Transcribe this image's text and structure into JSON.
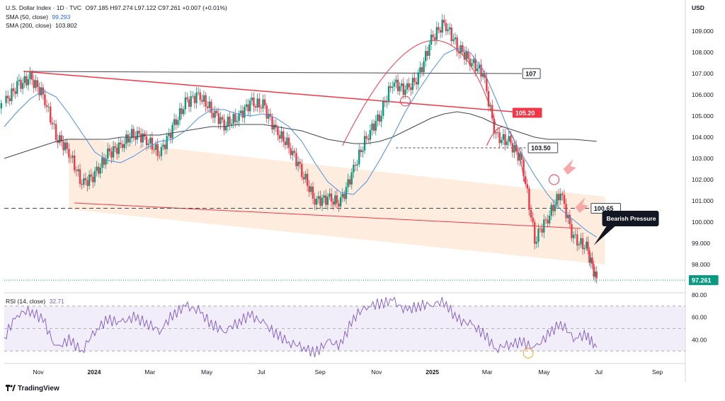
{
  "header": {
    "title": "U.S. Dollar Index · 1D · TVC",
    "ohlc": "O97.185  H97.274  L97.122  C97.261  +0.007 (+0.01%)",
    "sma50_label": "SMA (50, close)",
    "sma50_value": "99.293",
    "sma200_label": "SMA (200, close)",
    "sma200_value": "103.802",
    "rsi_label": "RSI (14, close)",
    "rsi_value": "32.71"
  },
  "colors": {
    "up": "#089981",
    "down": "#f23645",
    "sma50": "#4a8fe0",
    "sma200": "#434651",
    "rsi": "#7e57c2",
    "resistance": "#f23645",
    "channel_fill": "#fde7d3"
  },
  "annotations": {
    "level_107": "107",
    "level_105": "105.20",
    "level_103": "103.50",
    "level_100": "100.65",
    "price_tag": "97.261",
    "callout": "Bearish Pressure",
    "currency": "USD"
  },
  "brand": "TradingView",
  "chart_data": [
    {
      "type": "line",
      "series_kind": "candlestick",
      "x": [
        "2023-09-25",
        "2023-10-09",
        "2023-10-23",
        "2023-11-06",
        "2023-11-20",
        "2023-12-04",
        "2023-12-18",
        "2024-01-01",
        "2024-01-15",
        "2024-01-29",
        "2024-02-12",
        "2024-02-26",
        "2024-03-11",
        "2024-03-25",
        "2024-04-08",
        "2024-04-22",
        "2024-05-06",
        "2024-05-20",
        "2024-06-03",
        "2024-06-17",
        "2024-07-01",
        "2024-07-15",
        "2024-07-29",
        "2024-08-12",
        "2024-08-26",
        "2024-09-09",
        "2024-09-23",
        "2024-10-07",
        "2024-10-21",
        "2024-11-04",
        "2024-11-18",
        "2024-12-02",
        "2024-12-16",
        "2024-12-30",
        "2025-01-13",
        "2025-01-27",
        "2025-02-10",
        "2025-02-24",
        "2025-03-10",
        "2025-03-24",
        "2025-04-07",
        "2025-04-21",
        "2025-05-05",
        "2025-05-19",
        "2025-06-02",
        "2025-06-16",
        "2025-06-27"
      ],
      "close": [
        105.6,
        106.4,
        106.8,
        106.0,
        104.1,
        103.3,
        101.8,
        102.2,
        103.2,
        103.6,
        104.2,
        103.9,
        103.2,
        104.4,
        105.6,
        106.0,
        105.3,
        104.6,
        104.9,
        105.6,
        105.5,
        104.3,
        103.6,
        102.4,
        101.0,
        101.1,
        100.9,
        102.5,
        104.0,
        105.0,
        106.6,
        106.2,
        106.8,
        108.6,
        109.4,
        108.3,
        107.6,
        107.0,
        104.0,
        103.8,
        102.9,
        99.2,
        100.2,
        101.4,
        99.2,
        98.8,
        97.261
      ],
      "sma50": [
        104.5,
        105.2,
        105.8,
        106.2,
        105.9,
        105.1,
        104.2,
        103.3,
        102.9,
        102.8,
        103.1,
        103.5,
        103.8,
        103.9,
        104.3,
        104.9,
        105.3,
        105.3,
        105.1,
        105.0,
        105.1,
        104.9,
        104.5,
        103.8,
        102.8,
        101.9,
        101.4,
        101.3,
        101.9,
        102.9,
        104.0,
        105.2,
        106.2,
        107.1,
        107.9,
        108.2,
        108.0,
        107.2,
        105.8,
        104.3,
        103.2,
        102.2,
        101.3,
        100.6,
        100.1,
        99.6,
        99.293
      ],
      "sma200": [
        103.0,
        103.2,
        103.4,
        103.6,
        103.8,
        103.9,
        103.9,
        103.9,
        103.9,
        104.0,
        104.0,
        104.1,
        104.1,
        104.2,
        104.3,
        104.4,
        104.5,
        104.5,
        104.6,
        104.6,
        104.6,
        104.5,
        104.4,
        104.3,
        104.1,
        103.9,
        103.8,
        103.7,
        103.7,
        103.8,
        104.0,
        104.3,
        104.6,
        104.9,
        105.1,
        105.2,
        105.1,
        104.9,
        104.6,
        104.4,
        104.2,
        104.0,
        103.9,
        103.9,
        103.9,
        103.85,
        103.802
      ],
      "rsi": [
        42,
        63,
        66,
        58,
        32,
        40,
        30,
        48,
        58,
        55,
        60,
        55,
        48,
        62,
        70,
        66,
        54,
        48,
        55,
        62,
        55,
        45,
        38,
        34,
        28,
        38,
        35,
        60,
        70,
        72,
        75,
        66,
        70,
        72,
        74,
        58,
        54,
        46,
        32,
        36,
        38,
        32,
        44,
        55,
        42,
        44,
        32.71
      ],
      "y_ticks": [
        "98.000",
        "99.000",
        "100.000",
        "101.000",
        "102.000",
        "103.000",
        "104.000",
        "105.000",
        "106.000",
        "107.000",
        "108.000",
        "109.000"
      ],
      "rsi_ticks": [
        "40.00",
        "60.00",
        "80.00"
      ],
      "x_ticks": [
        "Nov",
        "2024",
        "Mar",
        "May",
        "Jul",
        "Sep",
        "Nov",
        "2025",
        "Mar",
        "May",
        "Jul",
        "Sep"
      ],
      "ylim": [
        96.8,
        110.2
      ],
      "levels": [
        107,
        105.2,
        103.5,
        100.65,
        97.261
      ]
    }
  ]
}
